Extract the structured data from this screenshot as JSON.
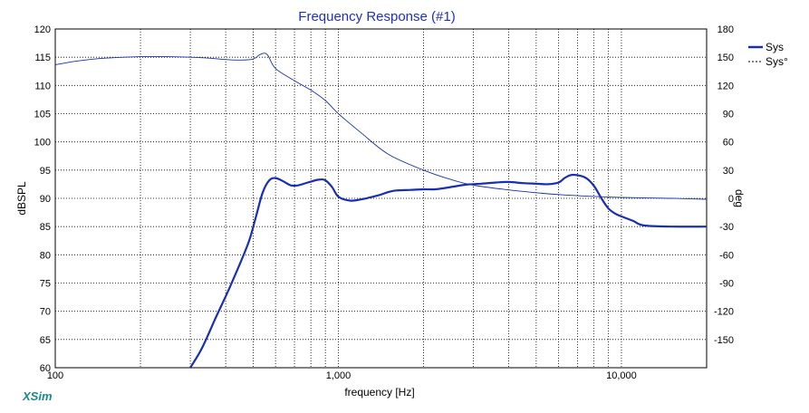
{
  "app": {
    "brand": "XSim"
  },
  "chart_data": {
    "type": "line",
    "title": "Frequency Response (#1)",
    "xlabel": "frequency [Hz]",
    "ylabel": "dBSPL",
    "y2label": "deg",
    "x_scale": "log",
    "xlim": [
      100,
      20000
    ],
    "ylim": [
      60,
      120
    ],
    "y2lim": [
      -180,
      180
    ],
    "x_tick_labels": [
      "100",
      "1,000",
      "10,000"
    ],
    "x_tick_values": [
      100,
      1000,
      10000
    ],
    "y_ticks": [
      60,
      65,
      70,
      75,
      80,
      85,
      90,
      95,
      100,
      105,
      110,
      115,
      120
    ],
    "y2_ticks": [
      -150,
      -120,
      -90,
      -60,
      -30,
      0,
      30,
      60,
      90,
      120,
      150,
      180
    ],
    "grid": true,
    "legend_position": "top-right",
    "series": [
      {
        "name": "Sys",
        "axis": "left",
        "style": "solid",
        "color": "#1a2fb0",
        "x": [
          300,
          330,
          370,
          420,
          480,
          510,
          540,
          570,
          600,
          640,
          680,
          720,
          780,
          850,
          900,
          950,
          1000,
          1100,
          1200,
          1300,
          1400,
          1500,
          1600,
          1800,
          2000,
          2200,
          2500,
          2800,
          3200,
          3600,
          4000,
          4500,
          5000,
          5500,
          6000,
          6300,
          6600,
          7000,
          7500,
          8000,
          8500,
          9000,
          9500,
          10000,
          11000,
          12000,
          15000,
          20000
        ],
        "values": [
          60,
          63.5,
          69,
          75,
          82,
          86.5,
          91,
          93.2,
          93.6,
          93,
          92.3,
          92.3,
          92.8,
          93.3,
          93.2,
          92,
          90.3,
          89.6,
          89.8,
          90.2,
          90.6,
          91.1,
          91.4,
          91.5,
          91.6,
          91.6,
          92,
          92.4,
          92.6,
          92.8,
          92.9,
          92.7,
          92.6,
          92.5,
          92.8,
          93.6,
          94.1,
          94.1,
          93.6,
          92.2,
          90,
          88.2,
          87.3,
          86.8,
          86,
          85.2,
          85,
          85
        ]
      },
      {
        "name": "Sys°",
        "axis": "right",
        "style": "solid-thin",
        "color": "#1a2fb0",
        "x": [
          100,
          120,
          150,
          200,
          250,
          300,
          350,
          400,
          450,
          500,
          530,
          560,
          600,
          700,
          800,
          900,
          1000,
          1200,
          1500,
          2000,
          2500,
          3000,
          4000,
          5000,
          6000,
          8000,
          10000,
          15000,
          20000
        ],
        "values": [
          142,
          146,
          149,
          150.5,
          150.5,
          150,
          149,
          147.5,
          147,
          148,
          153,
          153,
          138,
          125,
          115,
          104,
          90,
          70,
          47,
          30,
          20,
          14,
          9,
          6,
          4,
          2,
          1,
          0,
          -1
        ]
      }
    ]
  }
}
